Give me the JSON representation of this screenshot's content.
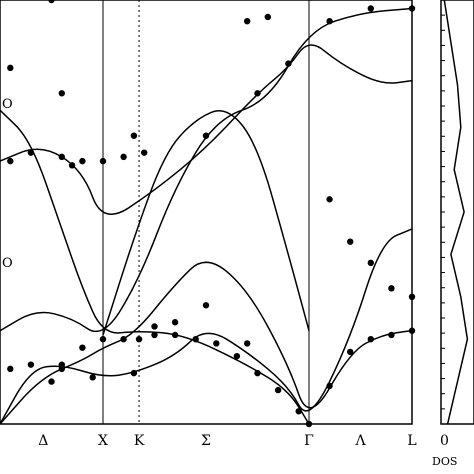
{
  "chart_data": [
    {
      "type": "line",
      "title": "",
      "xlabel": "",
      "ylabel": "",
      "x_ticks": [
        "Δ",
        "X",
        "K",
        "Σ",
        "Γ",
        "Λ",
        "L"
      ],
      "x_tick_positions": [
        0.42,
        1.0,
        1.35,
        2.0,
        3.0,
        3.5,
        4.0
      ],
      "xlim": [
        0,
        4.0
      ],
      "ylim": [
        0,
        100
      ],
      "mode_labels": [
        "O",
        "O"
      ],
      "grid": false,
      "series": [
        {
          "x": [
            0,
            0.3,
            0.6,
            0.8,
            1.0,
            1.35,
            1.8,
            2.4,
            2.8,
            3.0
          ],
          "y": [
            74,
            67,
            46,
            32,
            21,
            22,
            21,
            14,
            8,
            0
          ]
        },
        {
          "x": [
            0,
            0.35,
            0.7,
            1.0,
            1.35,
            1.7,
            2.1,
            2.6,
            3.0,
            3.5,
            4.0
          ],
          "y": [
            22,
            27,
            25,
            20,
            34,
            56,
            72,
            76,
            93,
            97,
            98
          ]
        },
        {
          "x": [
            1.0,
            1.3,
            1.6,
            1.9,
            2.2,
            2.5,
            2.8,
            3.0
          ],
          "y": [
            21,
            44,
            64,
            72,
            75,
            66,
            40,
            22
          ]
        },
        {
          "x": [
            0,
            0.4,
            0.8,
            1.0,
            1.5,
            2.0,
            2.5,
            2.8,
            3.0,
            3.3,
            3.7,
            4.0
          ],
          "y": [
            62,
            66,
            60,
            47,
            55,
            65,
            78,
            84,
            91,
            85,
            80,
            81
          ]
        },
        {
          "x": [
            0,
            0.3,
            0.6,
            1.0,
            1.3,
            1.7,
            2.0,
            2.4,
            2.8,
            3.0,
            3.4,
            3.7,
            4.0
          ],
          "y": [
            0,
            13,
            14,
            11,
            12,
            16,
            23,
            17,
            9,
            0,
            20,
            43,
            46
          ]
        },
        {
          "x": [
            0,
            0.4,
            0.8,
            1.0,
            1.3,
            1.7,
            2.0,
            2.4,
            2.8,
            3.0,
            3.4,
            3.7,
            4.0
          ],
          "y": [
            0,
            11,
            15,
            18,
            21,
            33,
            40,
            32,
            14,
            0,
            17,
            21,
            22
          ]
        }
      ],
      "points": [
        {
          "x": 0.5,
          "y": 10
        },
        {
          "x": 0.6,
          "y": 14
        },
        {
          "x": 0.8,
          "y": 18
        },
        {
          "x": 1.0,
          "y": 20
        },
        {
          "x": 1.2,
          "y": 20
        },
        {
          "x": 1.35,
          "y": 20
        },
        {
          "x": 1.5,
          "y": 21
        },
        {
          "x": 1.7,
          "y": 21
        },
        {
          "x": 1.9,
          "y": 20
        },
        {
          "x": 2.1,
          "y": 19
        },
        {
          "x": 2.3,
          "y": 16
        },
        {
          "x": 2.5,
          "y": 12
        },
        {
          "x": 2.7,
          "y": 8
        },
        {
          "x": 2.9,
          "y": 3
        },
        {
          "x": 3.0,
          "y": 0
        },
        {
          "x": 0.1,
          "y": 13
        },
        {
          "x": 0.3,
          "y": 14
        },
        {
          "x": 0.6,
          "y": 13
        },
        {
          "x": 0.9,
          "y": 11
        },
        {
          "x": 1.3,
          "y": 12
        },
        {
          "x": 1.5,
          "y": 23
        },
        {
          "x": 1.7,
          "y": 24
        },
        {
          "x": 2.0,
          "y": 28
        },
        {
          "x": 2.4,
          "y": 19
        },
        {
          "x": 3.2,
          "y": 9
        },
        {
          "x": 3.4,
          "y": 17
        },
        {
          "x": 3.6,
          "y": 20
        },
        {
          "x": 3.8,
          "y": 21
        },
        {
          "x": 4.0,
          "y": 22
        },
        {
          "x": 0.1,
          "y": 62
        },
        {
          "x": 0.3,
          "y": 64
        },
        {
          "x": 0.6,
          "y": 63
        },
        {
          "x": 0.8,
          "y": 62
        },
        {
          "x": 1.0,
          "y": 62
        },
        {
          "x": 1.2,
          "y": 63
        },
        {
          "x": 1.4,
          "y": 64
        },
        {
          "x": 2.0,
          "y": 68
        },
        {
          "x": 2.5,
          "y": 78
        },
        {
          "x": 2.8,
          "y": 85
        },
        {
          "x": 3.2,
          "y": 53
        },
        {
          "x": 3.4,
          "y": 43
        },
        {
          "x": 3.6,
          "y": 38
        },
        {
          "x": 3.8,
          "y": 32
        },
        {
          "x": 4.0,
          "y": 30
        },
        {
          "x": 0.1,
          "y": 84
        },
        {
          "x": 0.5,
          "y": 100
        },
        {
          "x": 0.6,
          "y": 78
        },
        {
          "x": 0.7,
          "y": 61
        },
        {
          "x": 1.3,
          "y": 68
        },
        {
          "x": 2.4,
          "y": 95
        },
        {
          "x": 2.6,
          "y": 96
        },
        {
          "x": 3.2,
          "y": 95
        },
        {
          "x": 3.6,
          "y": 98
        },
        {
          "x": 4.0,
          "y": 98
        }
      ]
    },
    {
      "type": "line",
      "xlabel": "DOS",
      "x_ticks": [
        "0"
      ],
      "ylim": [
        0,
        100
      ],
      "x": [
        0,
        10,
        20,
        30,
        40,
        50,
        60,
        70,
        80,
        90,
        100
      ],
      "values": [
        0.2,
        0.5,
        0.8,
        0.6,
        0.3,
        0.7,
        0.4,
        0.6,
        0.5,
        0.3,
        0.1
      ]
    }
  ]
}
